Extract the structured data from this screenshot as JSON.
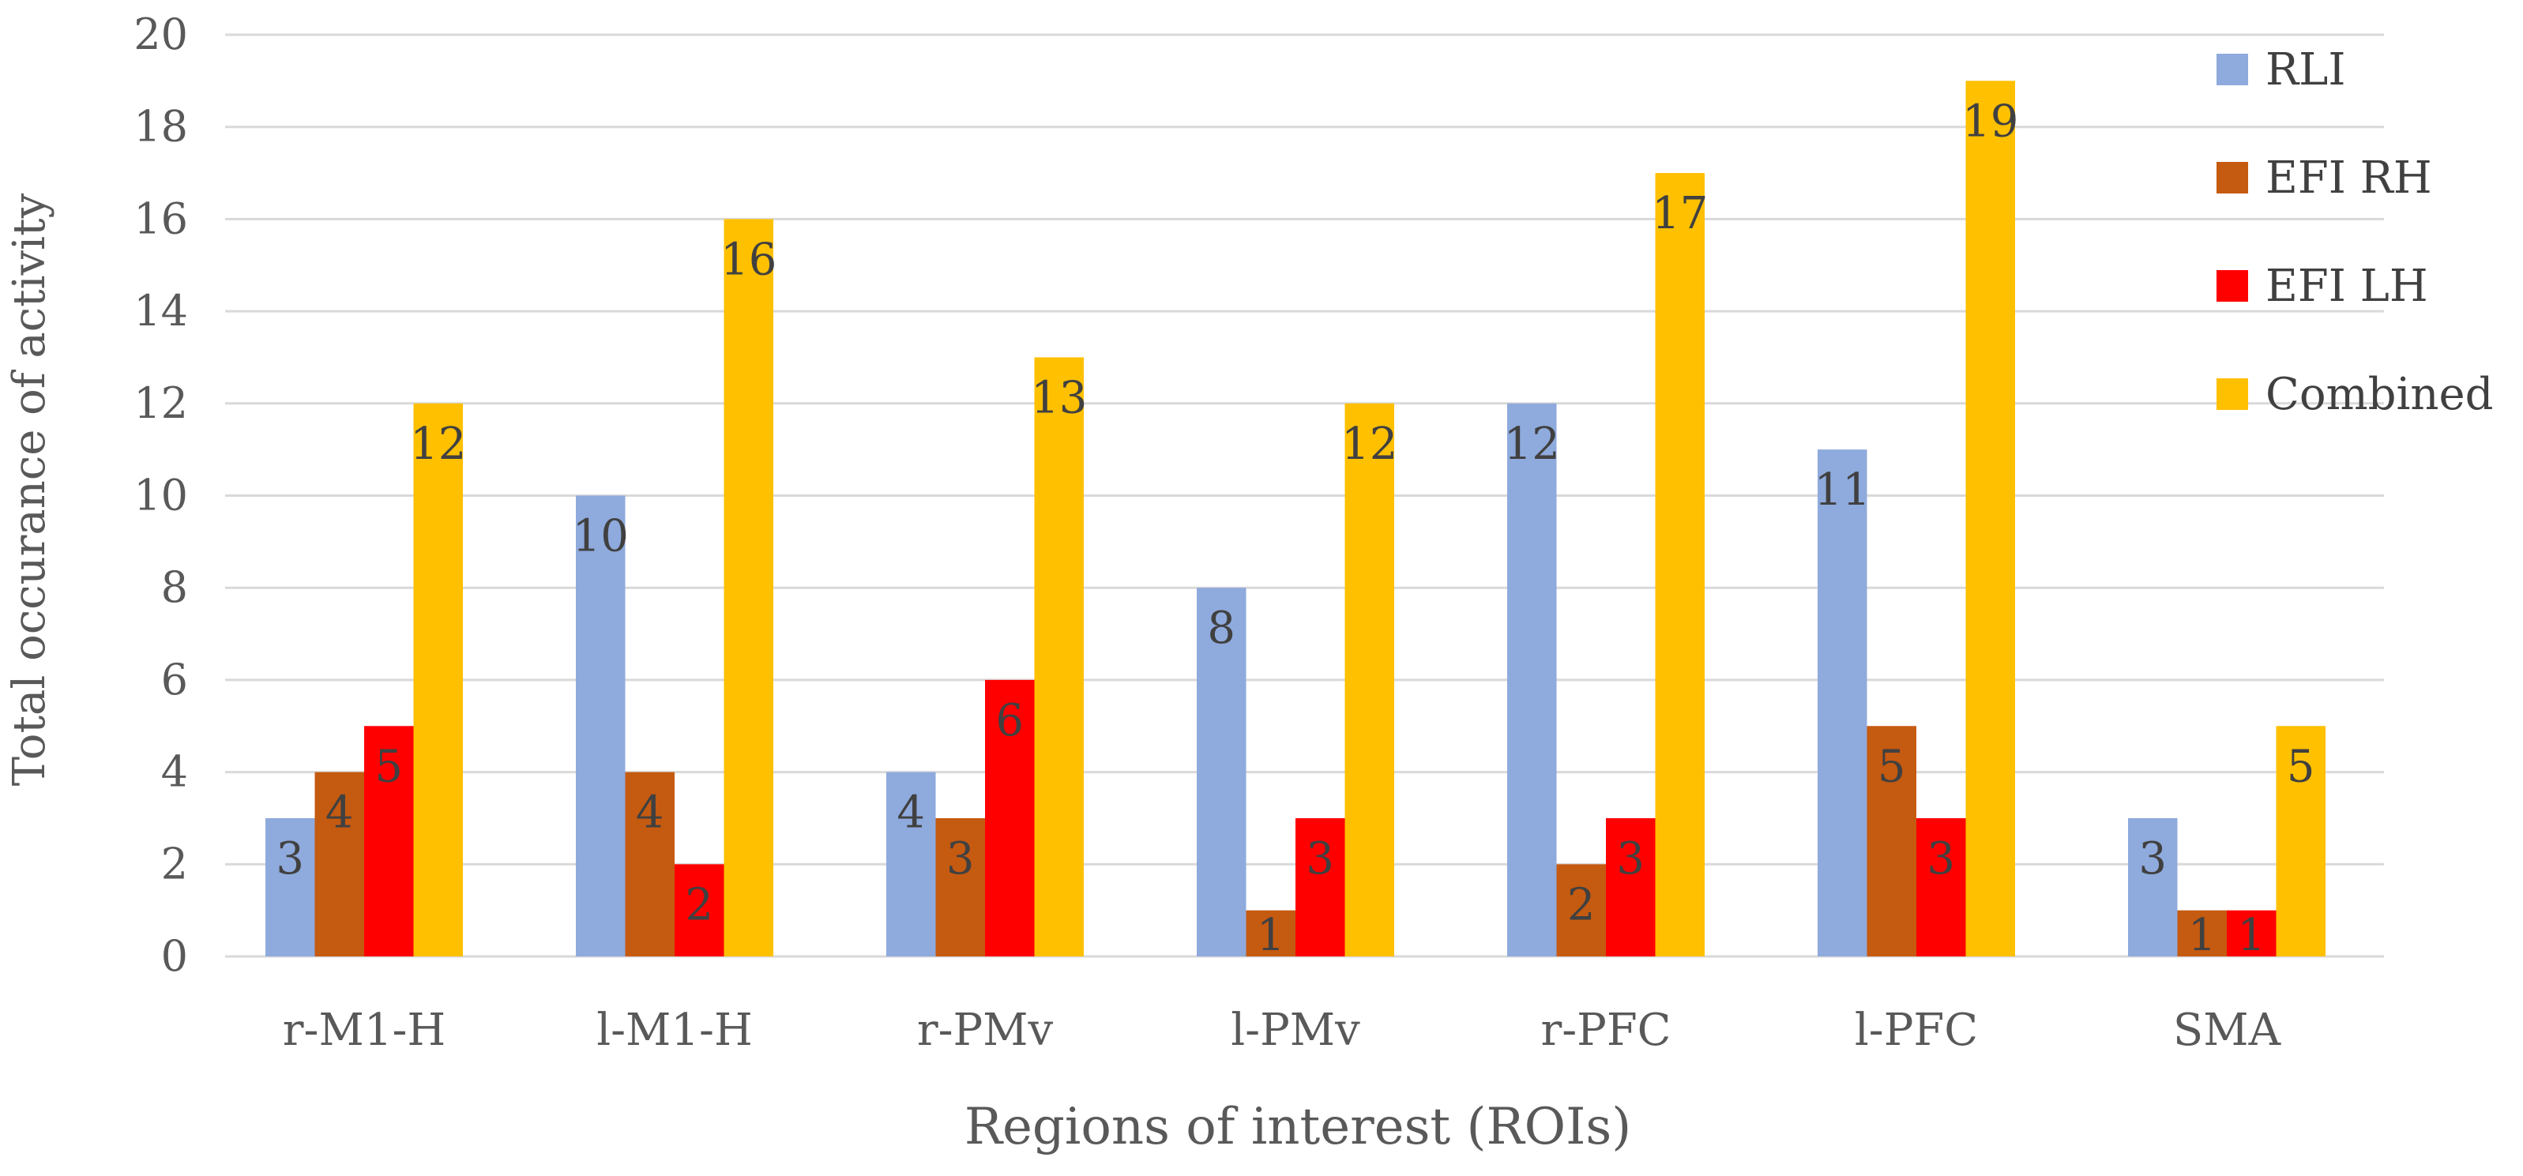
{
  "chart_data": {
    "type": "bar",
    "title": "",
    "xlabel": "Regions of interest (ROIs)",
    "ylabel": "Total occurance of activity",
    "ylim": [
      0,
      20
    ],
    "yticks": [
      0,
      2,
      4,
      6,
      8,
      10,
      12,
      14,
      16,
      18,
      20
    ],
    "grid": true,
    "legend_position": "right",
    "categories": [
      "r-M1-H",
      "l-M1-H",
      "r-PMv",
      "l-PMv",
      "r-PFC",
      "l-PFC",
      "SMA"
    ],
    "series": [
      {
        "name": "RLI",
        "color": "#8FAADC",
        "values": [
          3,
          10,
          4,
          8,
          12,
          11,
          3
        ]
      },
      {
        "name": "EFI RH",
        "color": "#C55A11",
        "values": [
          4,
          4,
          3,
          1,
          2,
          5,
          1
        ]
      },
      {
        "name": "EFI LH",
        "color": "#FF0000",
        "values": [
          5,
          2,
          6,
          3,
          3,
          3,
          1
        ]
      },
      {
        "name": "Combined",
        "color": "#FFC000",
        "values": [
          12,
          16,
          13,
          12,
          17,
          19,
          5
        ]
      }
    ]
  },
  "colors": {
    "grid": "#D9D9D9",
    "text": "#595959",
    "label": "#404040"
  }
}
